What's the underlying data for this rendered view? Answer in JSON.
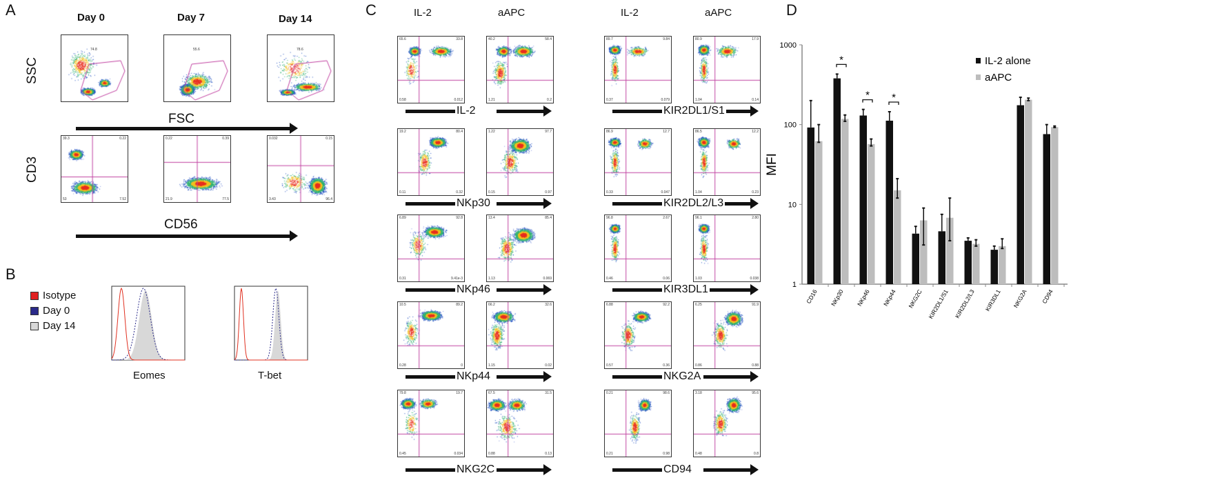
{
  "panel_labels": {
    "a": "A",
    "b": "B",
    "c": "C",
    "d": "D"
  },
  "panel_a": {
    "columns": [
      "Day 0",
      "Day 7",
      "Day 14"
    ],
    "row_labels": {
      "ssc": "SSC",
      "cd3": "CD3"
    },
    "axis_labels": {
      "fsc": "FSC",
      "cd56": "CD56"
    },
    "gate_values": [
      "74.8",
      "55.6",
      "78.6"
    ],
    "quadrants": [
      [
        "39.3",
        "0.22",
        "53",
        "7.52"
      ],
      [
        "0.22",
        "0.39",
        "21.9",
        "77.5"
      ],
      [
        "0.032",
        "0.15",
        "3.43",
        "96.4"
      ]
    ]
  },
  "panel_b": {
    "legend": [
      {
        "label": "Isotype",
        "color": "#e02020"
      },
      {
        "label": "Day 0",
        "color": "#2a2a8a"
      },
      {
        "label": "Day 14",
        "color": "#d8d8d8"
      }
    ],
    "histograms": [
      "Eomes",
      "T-bet"
    ]
  },
  "panel_c": {
    "columns": [
      "IL-2",
      "aAPC",
      "IL-2",
      "aAPC"
    ],
    "markers_left": [
      "IL-2",
      "NKp30",
      "NKp46",
      "NKp44",
      "NKG2C"
    ],
    "markers_right": [
      "KIR2DL1/S1",
      "KIR2DL2/L3",
      "KIR3DL1",
      "NKG2A",
      "CD94"
    ],
    "quadrants": [
      [
        [
          "65.6",
          "33.8",
          "0.58",
          "0.012"
        ],
        [
          "19.2",
          "80.4",
          "0.11",
          "0.32"
        ],
        [
          "6.89",
          "92.8",
          "0.31",
          "9.41e-3"
        ],
        [
          "10.5",
          "89.2",
          "0.28",
          "0"
        ],
        [
          "79.8",
          "19.7",
          "0.45",
          "0.034"
        ]
      ],
      [
        [
          "40.2",
          "58.4",
          "1.21",
          "0.2"
        ],
        [
          "1.22",
          "97.7",
          "0.15",
          "0.97"
        ],
        [
          "13.4",
          "85.4",
          "1.13",
          "0.069"
        ],
        [
          "66.2",
          "32.6",
          "1.15",
          "0.02"
        ],
        [
          "67.5",
          "31.5",
          "0.88",
          "0.13"
        ]
      ],
      [
        [
          "89.7",
          "9.84",
          "0.37",
          "0.079"
        ],
        [
          "86.9",
          "12.7",
          "0.33",
          "0.047"
        ],
        [
          "96.8",
          "2.67",
          "0.46",
          "0.06"
        ],
        [
          "6.88",
          "92.2",
          "0.57",
          "0.36"
        ],
        [
          "0.21",
          "98.6",
          "0.21",
          "0.98"
        ]
      ],
      [
        [
          "80.9",
          "17.9",
          "1.04",
          "0.14"
        ],
        [
          "86.5",
          "12.2",
          "1.04",
          "0.23"
        ],
        [
          "96.1",
          "2.80",
          "1.03",
          "0.038"
        ],
        [
          "6.25",
          "91.9",
          "0.86",
          "0.88"
        ],
        [
          "3.18",
          "95.6",
          "0.48",
          "0.8"
        ]
      ]
    ],
    "gate_color": "#c040a0"
  },
  "chart_data": {
    "type": "bar",
    "title": "",
    "xlabel": "",
    "ylabel": "MFI",
    "yscale": "log",
    "ylim": [
      1,
      1000
    ],
    "yticks": [
      "1",
      "10",
      "100",
      "1000"
    ],
    "legend_position": "top-right",
    "categories": [
      "CD16",
      "NKp30",
      "NKp46",
      "NKp44",
      "NKG2C",
      "KIR2DL1/S1",
      "KIR2DL2/L3",
      "KIR3DL1",
      "NKG2A",
      "CD94"
    ],
    "series": [
      {
        "name": "IL-2 alone",
        "color": "#111111",
        "values": [
          92,
          380,
          130,
          112,
          4.3,
          4.6,
          3.5,
          2.7,
          175,
          76
        ],
        "err_upper": [
          200,
          430,
          155,
          145,
          5.3,
          7.5,
          3.8,
          3.0,
          220,
          100
        ],
        "err_lower": [
          92,
          380,
          130,
          112,
          4.3,
          4.6,
          3.5,
          2.7,
          175,
          76
        ]
      },
      {
        "name": "aAPC",
        "color": "#bdbdbd",
        "values": [
          62,
          118,
          57,
          15,
          6.3,
          6.8,
          3.2,
          3.0,
          205,
          93
        ],
        "err_upper": [
          100,
          132,
          66,
          21,
          9,
          12,
          3.6,
          3.7,
          215,
          96
        ],
        "err_lower": [
          60,
          110,
          54,
          12,
          3.1,
          3.5,
          3.0,
          2.8,
          200,
          92
        ]
      }
    ],
    "significance": [
      {
        "category": "NKp30",
        "label": "*"
      },
      {
        "category": "NKp46",
        "label": "*"
      },
      {
        "category": "NKp44",
        "label": "*"
      }
    ]
  }
}
